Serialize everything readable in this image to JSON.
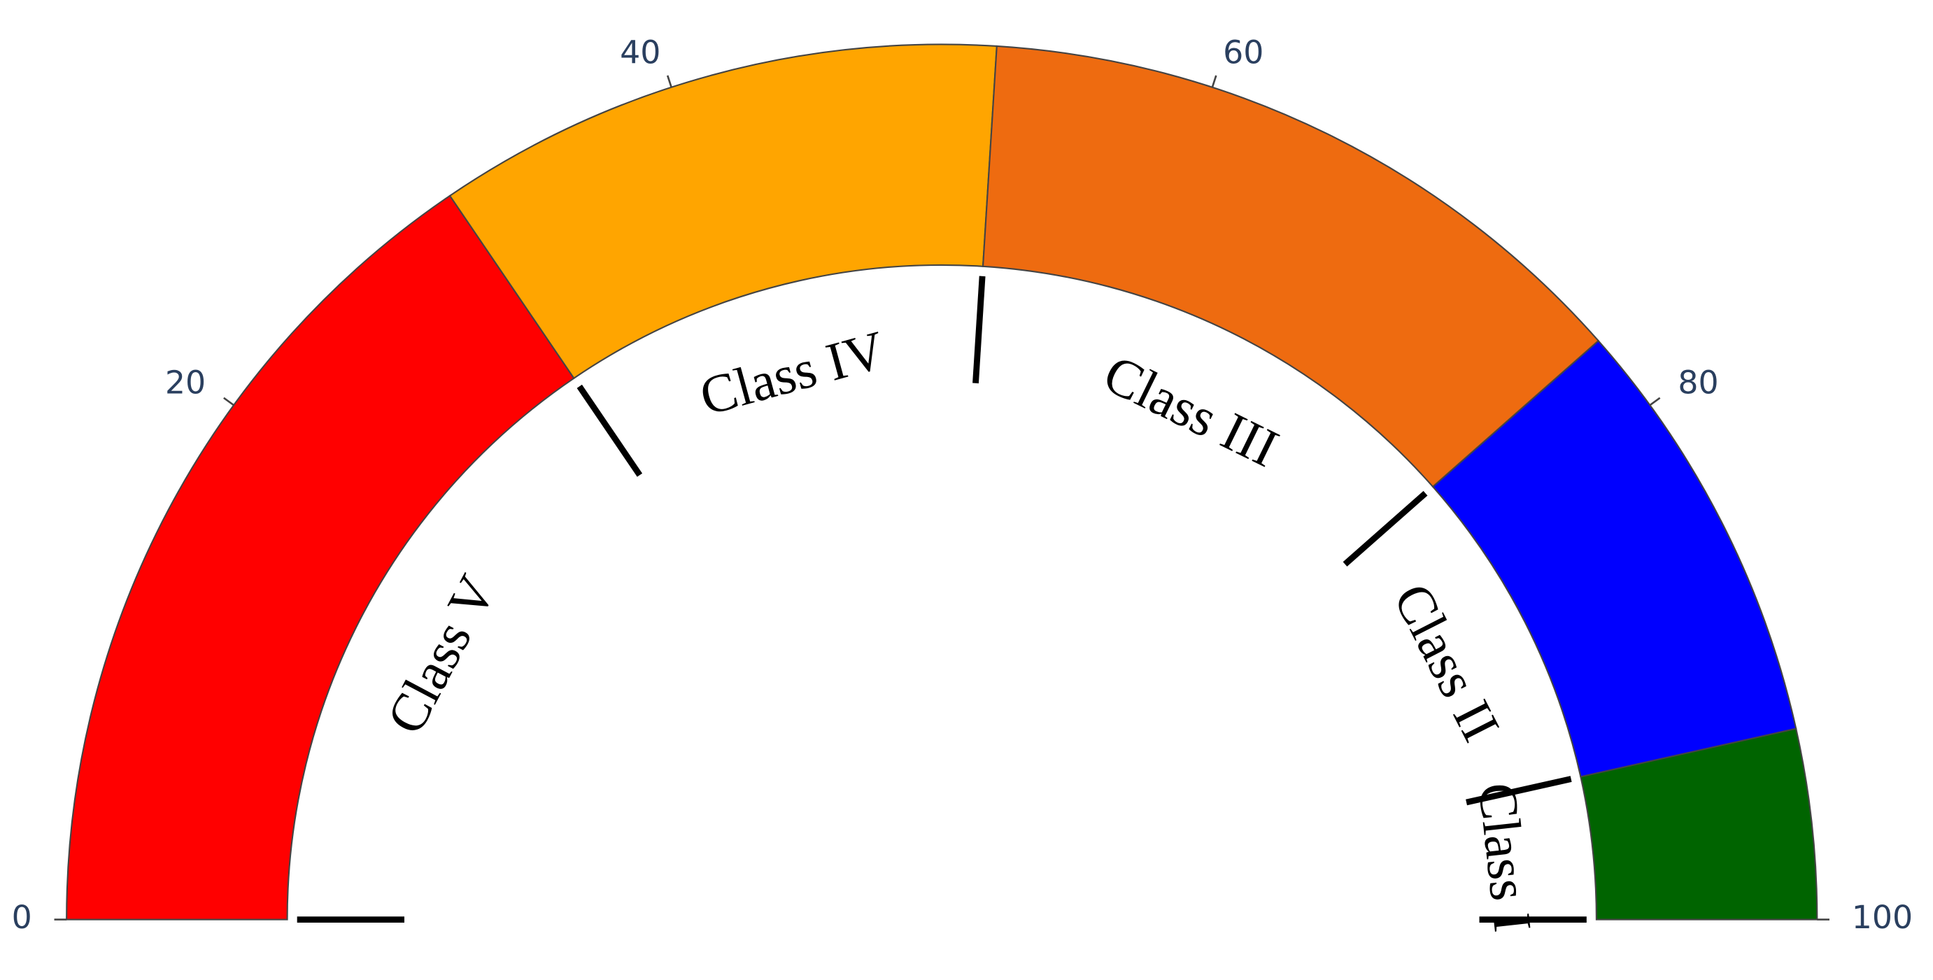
{
  "chart_data": {
    "type": "gauge",
    "xlim": [
      0,
      100
    ],
    "xticks": [
      0,
      20,
      40,
      60,
      80,
      100
    ],
    "bands": [
      {
        "name": "Class V",
        "from": 0,
        "to": 31,
        "color": "#ff0000"
      },
      {
        "name": "Class IV",
        "from": 31,
        "to": 52,
        "color": "#ffa500"
      },
      {
        "name": "Class III",
        "from": 52,
        "to": 77,
        "color": "#ee6b10"
      },
      {
        "name": "Class II",
        "from": 77,
        "to": 93,
        "color": "#0000ff"
      },
      {
        "name": "Class I",
        "from": 93,
        "to": 100,
        "color": "#006400"
      }
    ]
  }
}
